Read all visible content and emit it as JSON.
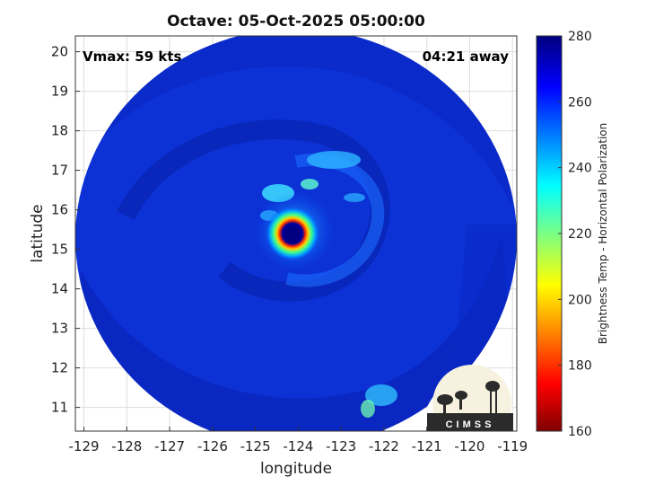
{
  "chart_data": {
    "type": "heatmap",
    "title": "Octave: 05-Oct-2025 05:00:00",
    "xlabel": "longitude",
    "ylabel": "latitude",
    "xlim": [
      -129.2,
      -118.9
    ],
    "ylim": [
      10.4,
      20.4
    ],
    "xticks": [
      "-129",
      "-128",
      "-127",
      "-126",
      "-125",
      "-124",
      "-123",
      "-122",
      "-121",
      "-120",
      "-119"
    ],
    "xtick_values": [
      -129,
      -128,
      -127,
      -126,
      -125,
      -124,
      -123,
      -122,
      -121,
      -120,
      -119
    ],
    "yticks": [
      "11",
      "12",
      "13",
      "14",
      "15",
      "16",
      "17",
      "18",
      "19",
      "20"
    ],
    "ytick_values": [
      11,
      12,
      13,
      14,
      15,
      16,
      17,
      18,
      19,
      20
    ],
    "grid": true,
    "annotations": {
      "vmax": "Vmax: 59 kts",
      "away": "04:21 away"
    },
    "storm_center": {
      "lon": -124.1,
      "lat": 15.35
    },
    "swath_center": {
      "lon": -124.05,
      "lat": 15.6
    },
    "colorbar": {
      "label": "Brightness Temp - Horizontal Polarization",
      "min": 160,
      "max": 280,
      "ticks": [
        "280",
        "260",
        "240",
        "220",
        "200",
        "180",
        "160"
      ],
      "tick_values": [
        280,
        260,
        240,
        220,
        200,
        180,
        160
      ],
      "colormap": "jet"
    },
    "logo_text": "CIMSS"
  }
}
